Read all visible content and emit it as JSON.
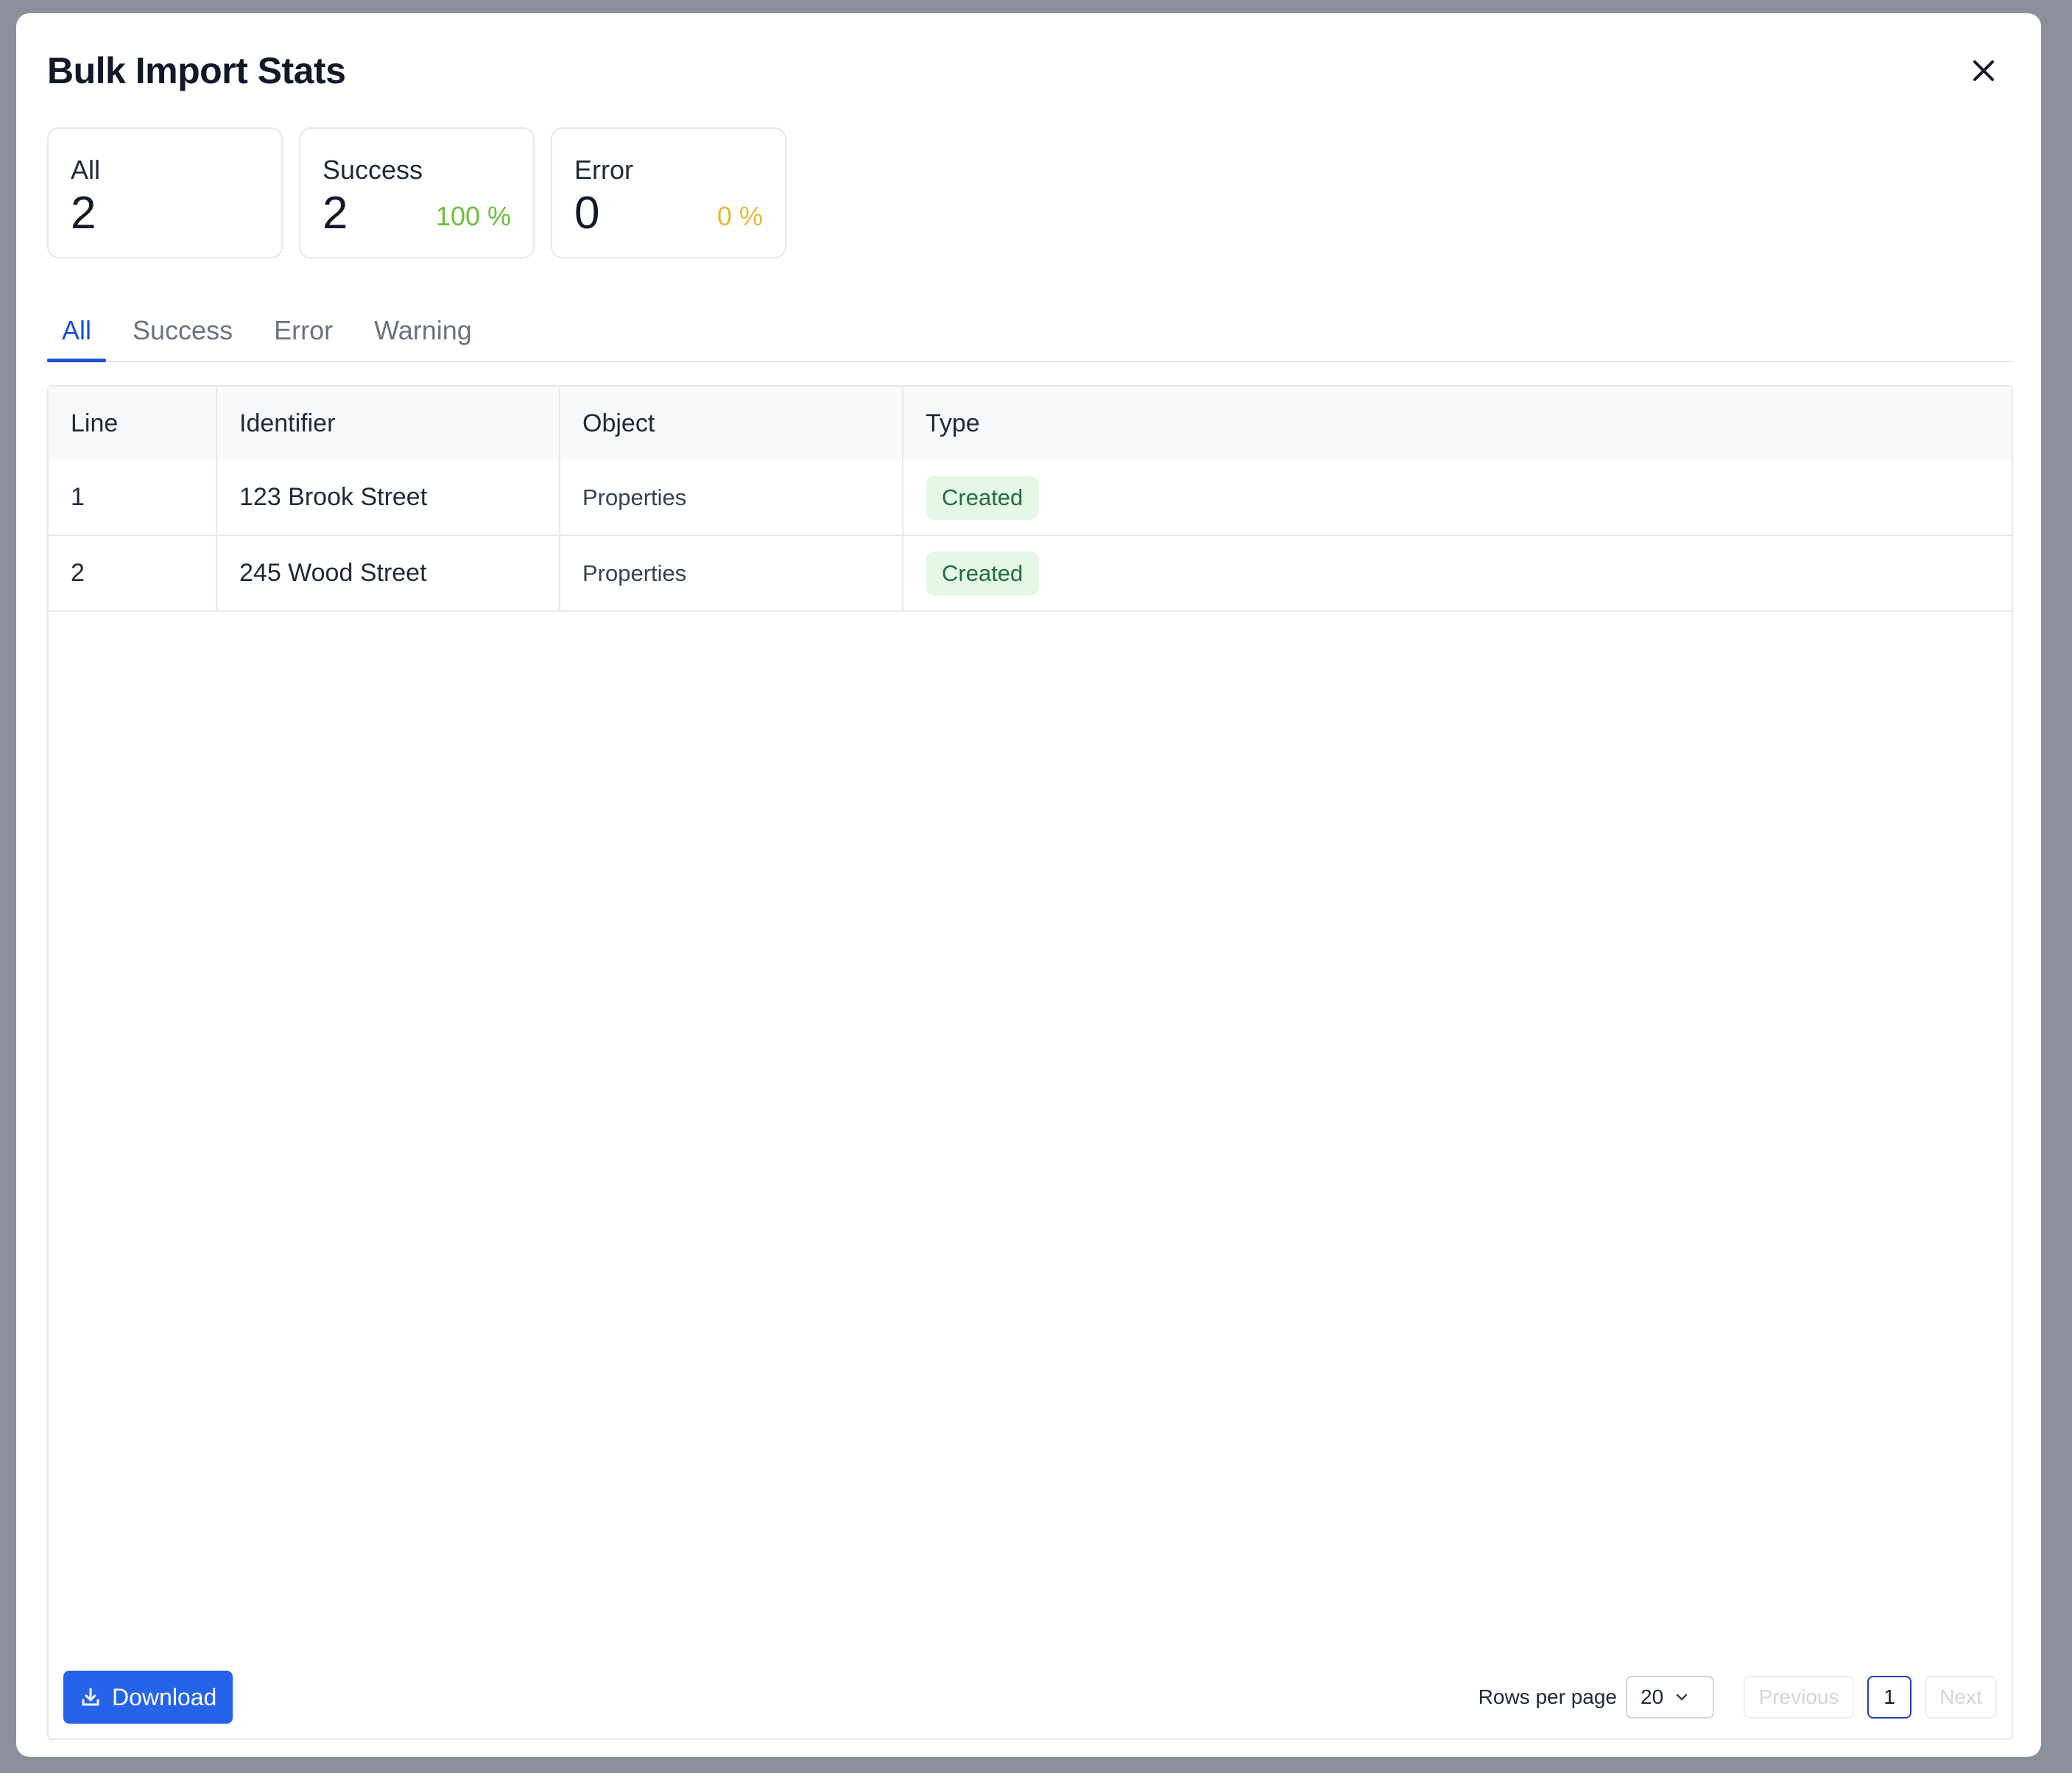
{
  "modal": {
    "title": "Bulk Import Stats"
  },
  "stats": {
    "all": {
      "label": "All",
      "value": "2"
    },
    "success": {
      "label": "Success",
      "value": "2",
      "percent": "100 %"
    },
    "error": {
      "label": "Error",
      "value": "0",
      "percent": "0 %"
    }
  },
  "tabs": [
    {
      "label": "All",
      "active": true
    },
    {
      "label": "Success"
    },
    {
      "label": "Error"
    },
    {
      "label": "Warning"
    }
  ],
  "table": {
    "columns": [
      "Line",
      "Identifier",
      "Object",
      "Type"
    ],
    "rows": [
      {
        "line": "1",
        "identifier": "123 Brook Street",
        "object": "Properties",
        "type": "Created"
      },
      {
        "line": "2",
        "identifier": "245 Wood Street",
        "object": "Properties",
        "type": "Created"
      }
    ]
  },
  "footer": {
    "download_label": "Download",
    "rows_per_page_label": "Rows per page",
    "rows_per_page_value": "20",
    "previous_label": "Previous",
    "current_page": "1",
    "next_label": "Next"
  },
  "colors": {
    "accent": "#2563eb",
    "success": "#6bbf3a",
    "warning": "#e0b93a",
    "badge_bg": "#e5f7e9",
    "badge_text": "#1f6f3a"
  },
  "icons": {
    "close": "close-icon",
    "download": "download-icon",
    "chevron": "chevron-down-icon"
  }
}
